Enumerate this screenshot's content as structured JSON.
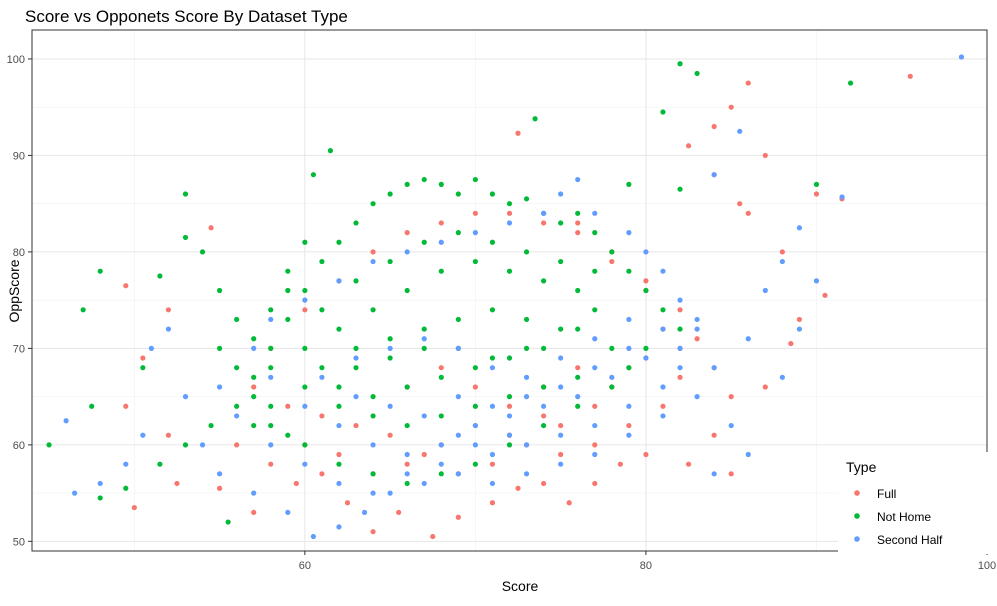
{
  "chart_data": {
    "type": "scatter",
    "title": "Score vs Opponets Score By Dataset Type",
    "xlabel": "Score",
    "ylabel": "OppScore",
    "xlim": [
      44,
      100
    ],
    "ylim": [
      49,
      103
    ],
    "x_ticks": [
      60,
      80,
      100
    ],
    "y_ticks": [
      50,
      60,
      70,
      80,
      90,
      100
    ],
    "grid": true,
    "legend": {
      "title": "Type",
      "placement": "bottom-right"
    },
    "series": [
      {
        "name": "Full",
        "color": "#F8766D",
        "points": [
          [
            95.5,
            98.2
          ],
          [
            86,
            97.5
          ],
          [
            85,
            95
          ],
          [
            84,
            93
          ],
          [
            82.5,
            91
          ],
          [
            87,
            90
          ],
          [
            84,
            88
          ],
          [
            90,
            86
          ],
          [
            91.5,
            85.5
          ],
          [
            85.5,
            85
          ],
          [
            86,
            84
          ],
          [
            88,
            80
          ],
          [
            90.5,
            75.5
          ],
          [
            89,
            73
          ],
          [
            88.5,
            70.5
          ],
          [
            87,
            66
          ],
          [
            85,
            65
          ],
          [
            84,
            61
          ],
          [
            82.5,
            58
          ],
          [
            85,
            57
          ],
          [
            49.5,
            76.5
          ],
          [
            52,
            74
          ],
          [
            54.5,
            82.5
          ],
          [
            50.5,
            69
          ],
          [
            49.5,
            64
          ],
          [
            52,
            61
          ],
          [
            50,
            53.5
          ],
          [
            52.5,
            56
          ],
          [
            55,
            55.5
          ],
          [
            57,
            53
          ],
          [
            59.5,
            56
          ],
          [
            61,
            57
          ],
          [
            62.5,
            54
          ],
          [
            64,
            51
          ],
          [
            65.5,
            53
          ],
          [
            67.5,
            50.5
          ],
          [
            69,
            52.5
          ],
          [
            71,
            54
          ],
          [
            72.5,
            55.5
          ],
          [
            74,
            56
          ],
          [
            75.5,
            54
          ],
          [
            77,
            56
          ],
          [
            78.5,
            58
          ],
          [
            80,
            59
          ],
          [
            72.5,
            92.3
          ],
          [
            76,
            83
          ],
          [
            78,
            80
          ],
          [
            80,
            76
          ],
          [
            81,
            72
          ],
          [
            79,
            68
          ],
          [
            77,
            64
          ],
          [
            75,
            62
          ],
          [
            73,
            60
          ],
          [
            71,
            58
          ],
          [
            69,
            57
          ],
          [
            67,
            59
          ],
          [
            65,
            61
          ],
          [
            63,
            62
          ],
          [
            61,
            63
          ],
          [
            59,
            64
          ],
          [
            57,
            66
          ],
          [
            58,
            70
          ],
          [
            60,
            74
          ],
          [
            62,
            77
          ],
          [
            64,
            80
          ],
          [
            66,
            82
          ],
          [
            68,
            83
          ],
          [
            70,
            84
          ],
          [
            72,
            84
          ],
          [
            74,
            83
          ],
          [
            76,
            82
          ],
          [
            78,
            79
          ],
          [
            80,
            77
          ],
          [
            82,
            74
          ],
          [
            83,
            71
          ],
          [
            82,
            67
          ],
          [
            81,
            64
          ],
          [
            79,
            62
          ],
          [
            77,
            60
          ],
          [
            75,
            59
          ],
          [
            66,
            66
          ],
          [
            68,
            68
          ],
          [
            70,
            66
          ],
          [
            72,
            64
          ],
          [
            74,
            66
          ],
          [
            76,
            68
          ],
          [
            78,
            66
          ],
          [
            80,
            69
          ],
          [
            82,
            70
          ],
          [
            84,
            68
          ],
          [
            56,
            60
          ],
          [
            58,
            58
          ],
          [
            60,
            60
          ],
          [
            62,
            59
          ],
          [
            64,
            57
          ],
          [
            66,
            58
          ],
          [
            68,
            60
          ],
          [
            70,
            62
          ],
          [
            72,
            61
          ],
          [
            74,
            63
          ]
        ]
      },
      {
        "name": "Not Home",
        "color": "#00BA38",
        "points": [
          [
            92,
            97.5
          ],
          [
            83,
            98.5
          ],
          [
            82,
            99.5
          ],
          [
            81,
            94.5
          ],
          [
            73.5,
            93.8
          ],
          [
            61.5,
            90.5
          ],
          [
            60.5,
            88
          ],
          [
            79,
            87
          ],
          [
            82,
            86.5
          ],
          [
            90,
            87
          ],
          [
            45,
            60
          ],
          [
            47.5,
            64
          ],
          [
            48,
            78
          ],
          [
            47,
            74
          ],
          [
            50.5,
            68
          ],
          [
            51.5,
            77.5
          ],
          [
            53,
            86
          ],
          [
            53,
            81.5
          ],
          [
            54,
            80
          ],
          [
            55,
            76
          ],
          [
            55.5,
            52
          ],
          [
            48,
            54.5
          ],
          [
            49.5,
            55.5
          ],
          [
            51.5,
            58
          ],
          [
            53,
            60
          ],
          [
            54.5,
            62
          ],
          [
            56,
            64
          ],
          [
            57,
            67
          ],
          [
            58,
            70
          ],
          [
            59,
            73
          ],
          [
            60,
            76
          ],
          [
            61,
            79
          ],
          [
            62,
            81
          ],
          [
            63,
            83
          ],
          [
            64,
            85
          ],
          [
            65,
            86
          ],
          [
            66,
            87
          ],
          [
            67,
            87.5
          ],
          [
            68,
            87
          ],
          [
            69,
            86
          ],
          [
            70,
            87.5
          ],
          [
            71,
            86
          ],
          [
            72,
            85
          ],
          [
            73,
            85.5
          ],
          [
            74,
            84
          ],
          [
            75,
            83
          ],
          [
            76,
            84
          ],
          [
            77,
            82
          ],
          [
            78,
            80
          ],
          [
            79,
            78
          ],
          [
            80,
            76
          ],
          [
            81,
            74
          ],
          [
            82,
            72
          ],
          [
            80,
            70
          ],
          [
            79,
            68
          ],
          [
            78,
            66
          ],
          [
            76,
            64
          ],
          [
            74,
            62
          ],
          [
            72,
            60
          ],
          [
            70,
            58
          ],
          [
            68,
            57
          ],
          [
            66,
            56
          ],
          [
            64,
            57
          ],
          [
            62,
            58
          ],
          [
            60,
            60
          ],
          [
            58,
            62
          ],
          [
            57,
            65
          ],
          [
            58,
            68
          ],
          [
            60,
            70
          ],
          [
            62,
            72
          ],
          [
            64,
            74
          ],
          [
            66,
            76
          ],
          [
            68,
            78
          ],
          [
            70,
            79
          ],
          [
            72,
            78
          ],
          [
            74,
            77
          ],
          [
            76,
            76
          ],
          [
            77,
            74
          ],
          [
            76,
            72
          ],
          [
            74,
            70
          ],
          [
            72,
            69
          ],
          [
            70,
            68
          ],
          [
            68,
            67
          ],
          [
            66,
            66
          ],
          [
            64,
            65
          ],
          [
            62,
            66
          ],
          [
            61,
            68
          ],
          [
            63,
            70
          ],
          [
            65,
            71
          ],
          [
            67,
            72
          ],
          [
            69,
            73
          ],
          [
            71,
            74
          ],
          [
            73,
            73
          ],
          [
            75,
            72
          ],
          [
            73,
            70
          ],
          [
            71,
            69
          ],
          [
            69,
            70
          ],
          [
            67,
            70
          ],
          [
            65,
            69
          ],
          [
            63,
            68
          ],
          [
            59,
            76
          ],
          [
            61,
            74
          ],
          [
            63,
            77
          ],
          [
            65,
            79
          ],
          [
            67,
            81
          ],
          [
            69,
            82
          ],
          [
            71,
            81
          ],
          [
            73,
            80
          ],
          [
            75,
            79
          ],
          [
            77,
            78
          ],
          [
            60,
            66
          ],
          [
            62,
            64
          ],
          [
            64,
            63
          ],
          [
            66,
            62
          ],
          [
            68,
            63
          ],
          [
            70,
            64
          ],
          [
            72,
            65
          ],
          [
            74,
            66
          ],
          [
            76,
            67
          ],
          [
            78,
            70
          ],
          [
            56,
            73
          ],
          [
            57,
            71
          ],
          [
            58,
            74
          ],
          [
            59,
            78
          ],
          [
            60,
            81
          ],
          [
            55,
            70
          ],
          [
            56,
            68
          ],
          [
            57,
            62
          ],
          [
            58,
            64
          ],
          [
            59,
            61
          ]
        ]
      },
      {
        "name": "Second Half",
        "color": "#619CFF",
        "points": [
          [
            98.5,
            100.2
          ],
          [
            85.5,
            92.5
          ],
          [
            84,
            88
          ],
          [
            91.5,
            85.7
          ],
          [
            89,
            82.5
          ],
          [
            88,
            79
          ],
          [
            90,
            77
          ],
          [
            87,
            76
          ],
          [
            89,
            72
          ],
          [
            86,
            71
          ],
          [
            88,
            67
          ],
          [
            85,
            62
          ],
          [
            86,
            59
          ],
          [
            84,
            57
          ],
          [
            46.5,
            55
          ],
          [
            48,
            56
          ],
          [
            49.5,
            58
          ],
          [
            50.5,
            61
          ],
          [
            46,
            62.5
          ],
          [
            51,
            70
          ],
          [
            52,
            72
          ],
          [
            53,
            65
          ],
          [
            54,
            60
          ],
          [
            55,
            57
          ],
          [
            57,
            55
          ],
          [
            59,
            53
          ],
          [
            60.5,
            50.5
          ],
          [
            62,
            51.5
          ],
          [
            63.5,
            53
          ],
          [
            65,
            55
          ],
          [
            67,
            56
          ],
          [
            69,
            57
          ],
          [
            71,
            56
          ],
          [
            73,
            57
          ],
          [
            75,
            58
          ],
          [
            77,
            59
          ],
          [
            79,
            61
          ],
          [
            81,
            63
          ],
          [
            83,
            65
          ],
          [
            84,
            68
          ],
          [
            83,
            72
          ],
          [
            82,
            75
          ],
          [
            81,
            78
          ],
          [
            80,
            80
          ],
          [
            79,
            82
          ],
          [
            77,
            84
          ],
          [
            75,
            86
          ],
          [
            76,
            87.5
          ],
          [
            74,
            84
          ],
          [
            72,
            83
          ],
          [
            70,
            82
          ],
          [
            68,
            81
          ],
          [
            66,
            80
          ],
          [
            64,
            79
          ],
          [
            62,
            77
          ],
          [
            60,
            75
          ],
          [
            58,
            73
          ],
          [
            57,
            70
          ],
          [
            58,
            67
          ],
          [
            60,
            64
          ],
          [
            62,
            62
          ],
          [
            64,
            60
          ],
          [
            66,
            59
          ],
          [
            68,
            60
          ],
          [
            70,
            62
          ],
          [
            72,
            63
          ],
          [
            74,
            64
          ],
          [
            76,
            65
          ],
          [
            78,
            67
          ],
          [
            80,
            69
          ],
          [
            82,
            70
          ],
          [
            83,
            73
          ],
          [
            82,
            68
          ],
          [
            81,
            66
          ],
          [
            79,
            64
          ],
          [
            77,
            62
          ],
          [
            75,
            61
          ],
          [
            73,
            60
          ],
          [
            71,
            59
          ],
          [
            69,
            61
          ],
          [
            67,
            63
          ],
          [
            65,
            64
          ],
          [
            63,
            65
          ],
          [
            61,
            67
          ],
          [
            63,
            69
          ],
          [
            65,
            70
          ],
          [
            67,
            71
          ],
          [
            69,
            70
          ],
          [
            71,
            68
          ],
          [
            73,
            67
          ],
          [
            75,
            69
          ],
          [
            77,
            71
          ],
          [
            79,
            73
          ],
          [
            81,
            72
          ],
          [
            79,
            70
          ],
          [
            77,
            68
          ],
          [
            75,
            66
          ],
          [
            73,
            65
          ],
          [
            71,
            64
          ],
          [
            69,
            65
          ],
          [
            55,
            66
          ],
          [
            56,
            63
          ],
          [
            58,
            60
          ],
          [
            60,
            58
          ],
          [
            62,
            56
          ],
          [
            64,
            55
          ],
          [
            66,
            57
          ],
          [
            68,
            58
          ],
          [
            70,
            60
          ],
          [
            72,
            61
          ]
        ]
      }
    ]
  }
}
